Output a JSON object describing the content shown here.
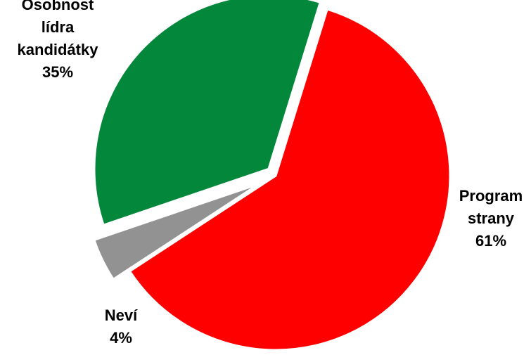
{
  "chart_data": {
    "type": "pie",
    "exploded": true,
    "slices": [
      {
        "name": "Program strany",
        "label_lines": [
          "Program",
          "strany"
        ],
        "value_label": "61%",
        "value": 61,
        "color": "#ff0000"
      },
      {
        "name": "Neví",
        "label_lines": [
          "Neví"
        ],
        "value_label": "4%",
        "value": 4,
        "color": "#929292"
      },
      {
        "name": "Osobnost lídra kandidátky",
        "label_lines": [
          "Osobnost",
          "lídra",
          "kandidátky"
        ],
        "value_label": "35%",
        "value": 35,
        "color": "#03883b"
      }
    ]
  }
}
